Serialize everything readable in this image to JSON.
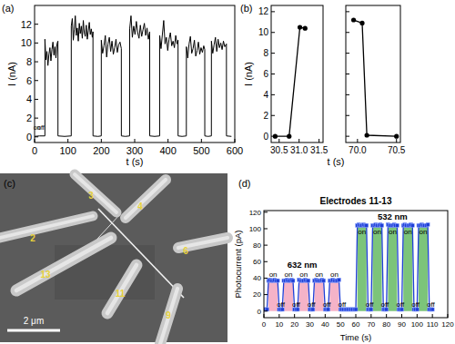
{
  "chart_data": [
    {
      "type": "line",
      "subtitle": "(a)",
      "x_label": "t (s)",
      "y_label": "I (nA)",
      "xlim": [
        0,
        600
      ],
      "xticks": [
        0,
        100,
        200,
        300,
        400,
        500,
        600
      ],
      "ylim": [
        -0.6,
        14
      ],
      "yticks": [
        0,
        2,
        4,
        6,
        8,
        10,
        12
      ],
      "series": [
        {
          "color": "#000000",
          "x": [
            0,
            15,
            30.9,
            31,
            34,
            37,
            40,
            43,
            46,
            49,
            52,
            55,
            58,
            61,
            64,
            67,
            70,
            70.1,
            90,
            109.9,
            110,
            113,
            116,
            119,
            122,
            125,
            128,
            131,
            134,
            137,
            140,
            143,
            146,
            149,
            152,
            155,
            158,
            161,
            164,
            167,
            170,
            173,
            175,
            175.1,
            190,
            199.9,
            200,
            204,
            208,
            212,
            216,
            220,
            224,
            228,
            232,
            236,
            240,
            244,
            248,
            252,
            256,
            260,
            260.1,
            272,
            284.9,
            285,
            289,
            293,
            297,
            301,
            305,
            309,
            313,
            317,
            321,
            325,
            329,
            333,
            337,
            341,
            345,
            345.1,
            360,
            374.9,
            375,
            379,
            383,
            387,
            391,
            395,
            399,
            403,
            407,
            411,
            415,
            419,
            423,
            427,
            430,
            430.1,
            442,
            454.9,
            455,
            459,
            463,
            467,
            471,
            475,
            479,
            483,
            487,
            491,
            495,
            499,
            503,
            507,
            510,
            510.1,
            520,
            529.9,
            530,
            534,
            538,
            542,
            546,
            550,
            554,
            558,
            562,
            566,
            570,
            575,
            575.1,
            590
          ],
          "values": [
            0.05,
            0.1,
            0.1,
            10.4,
            8.2,
            9.1,
            7.6,
            8.8,
            9.5,
            8.1,
            9.3,
            10.1,
            8.7,
            9.6,
            8.4,
            9.9,
            10.2,
            0.1,
            0.05,
            0.1,
            11.8,
            12.6,
            10.3,
            11.4,
            12.9,
            10.8,
            11.6,
            10.2,
            12.1,
            11.0,
            11.8,
            10.5,
            12.4,
            11.1,
            10.7,
            11.9,
            10.4,
            11.3,
            12.2,
            10.9,
            11.5,
            10.6,
            11.2,
            0.1,
            0.05,
            0.1,
            10.3,
            8.9,
            9.7,
            10.8,
            8.5,
            9.9,
            10.6,
            9.1,
            10.2,
            8.8,
            9.5,
            10.4,
            9.0,
            9.8,
            10.1,
            9.4,
            0.1,
            0.05,
            0.1,
            11.5,
            12.9,
            10.6,
            11.8,
            10.9,
            12.3,
            11.1,
            10.5,
            11.9,
            10.7,
            11.4,
            12.1,
            10.8,
            11.6,
            10.4,
            11.2,
            0.1,
            0.05,
            0.1,
            10.8,
            9.4,
            10.9,
            12.4,
            9.9,
            10.6,
            9.2,
            10.4,
            11.1,
            9.7,
            10.2,
            9.5,
            10.8,
            9.9,
            10.3,
            0.1,
            0.05,
            0.1,
            9.6,
            8.4,
            9.9,
            10.7,
            8.9,
            9.4,
            10.3,
            8.6,
            9.2,
            10.1,
            8.8,
            9.5,
            9.0,
            9.7,
            9.3,
            0.1,
            0.05,
            0.1,
            10.2,
            8.9,
            9.8,
            10.6,
            9.1,
            10.4,
            9.5,
            10.0,
            9.3,
            10.2,
            9.6,
            9.9,
            0.1,
            0.05
          ]
        }
      ],
      "annotations": [
        {
          "text": "on",
          "x": 7,
          "y": 0.9
        },
        {
          "text": "off",
          "x": 19,
          "y": 0.9
        }
      ]
    },
    {
      "type": "line",
      "subtitle": "(b)",
      "x_label": "t (s)",
      "y_label": "I (nA)",
      "xlim": [
        30.3,
        31.6
      ],
      "xticks": [
        30.5,
        {
          "value": 31,
          "label": "31.0"
        },
        31.5
      ],
      "ylim": [
        -0.6,
        12.6
      ],
      "yticks": [
        0,
        2,
        4,
        6,
        8,
        10,
        12
      ],
      "series": [
        {
          "color": "#000000",
          "marker": "circle",
          "x": [
            30.4,
            30.75,
            31.02,
            31.15
          ],
          "values": [
            0,
            0,
            10.5,
            10.4
          ]
        }
      ]
    },
    {
      "type": "line",
      "tick_labels": "x",
      "xlim": [
        69.85,
        70.55
      ],
      "xticks": [
        {
          "value": 70,
          "label": "70.0"
        },
        70.5
      ],
      "ylim": [
        -0.6,
        12.6
      ],
      "yticks": [
        0,
        2,
        4,
        6,
        8,
        10,
        12
      ],
      "series": [
        {
          "color": "#000000",
          "marker": "circle",
          "x": [
            69.95,
            70.06,
            70.12,
            70.5
          ],
          "values": [
            11.2,
            10.9,
            0.1,
            0
          ]
        }
      ]
    },
    {
      "type": "line",
      "title": "Electrodes 11-13",
      "subtitle": "(d)",
      "x_label": "Time (s)",
      "y_label": "Photocurrent (pA)",
      "xlim": [
        0,
        120
      ],
      "xticks": [
        0,
        10,
        20,
        30,
        40,
        50,
        60,
        70,
        80,
        90,
        100,
        110,
        120
      ],
      "ylim": [
        -8,
        122
      ],
      "yticks": [
        0,
        20,
        40,
        60,
        80,
        100,
        120
      ],
      "series": [
        {
          "type": "area",
          "color": "#f5b3c8",
          "x": [
            3,
            9,
            11,
            13,
            19,
            21,
            23,
            29,
            31,
            33,
            39,
            41,
            43,
            49
          ],
          "values": [
            37,
            37,
            null,
            37,
            37,
            null,
            37,
            37,
            null,
            37,
            37,
            null,
            37,
            37
          ]
        },
        {
          "type": "area",
          "color": "#7cc47a",
          "x": [
            61,
            67,
            69,
            71,
            77,
            79,
            81,
            87,
            89,
            91,
            97,
            99,
            101,
            107
          ],
          "values": [
            104,
            104,
            null,
            104,
            104,
            null,
            104,
            104,
            null,
            104,
            104,
            null,
            104,
            104
          ]
        },
        {
          "type": "line",
          "color": "#1f3fd6",
          "marker": "square",
          "x": [
            0,
            1,
            2,
            3,
            4,
            5,
            6,
            7,
            8,
            9,
            10,
            11,
            12,
            13,
            14,
            15,
            16,
            17,
            18,
            19,
            20,
            21,
            22,
            23,
            24,
            25,
            26,
            27,
            28,
            29,
            30,
            31,
            32,
            33,
            34,
            35,
            36,
            37,
            38,
            39,
            40,
            41,
            42,
            43,
            44,
            45,
            46,
            47,
            48,
            49,
            50,
            51,
            52,
            53,
            54,
            55,
            56,
            57,
            58,
            59,
            60,
            61,
            62,
            63,
            64,
            65,
            66,
            67,
            68,
            69,
            70,
            71,
            72,
            73,
            74,
            75,
            76,
            77,
            78,
            79,
            80,
            81,
            82,
            83,
            84,
            85,
            86,
            87,
            88,
            89,
            90,
            91,
            92,
            93,
            94,
            95,
            96,
            97,
            98,
            99,
            100,
            101,
            102,
            103,
            104,
            105,
            106,
            107,
            108,
            109,
            110
          ],
          "values": [
            2,
            2,
            2,
            37,
            38,
            37,
            37,
            38,
            37,
            37,
            2,
            2,
            2,
            37,
            37,
            38,
            37,
            37,
            38,
            37,
            2,
            2,
            2,
            38,
            37,
            37,
            37,
            38,
            37,
            37,
            2,
            2,
            2,
            37,
            38,
            37,
            37,
            37,
            38,
            37,
            2,
            2,
            2,
            37,
            37,
            38,
            37,
            37,
            37,
            38,
            2,
            2,
            2,
            2,
            2,
            2,
            2,
            2,
            2,
            2,
            2,
            104,
            105,
            104,
            104,
            105,
            104,
            104,
            2,
            2,
            2,
            104,
            104,
            105,
            104,
            104,
            105,
            104,
            2,
            2,
            2,
            105,
            104,
            104,
            104,
            105,
            104,
            104,
            2,
            2,
            2,
            104,
            105,
            104,
            104,
            104,
            105,
            104,
            2,
            2,
            2,
            104,
            104,
            105,
            104,
            104,
            104,
            105,
            2,
            2,
            2
          ]
        }
      ],
      "annotations": [
        {
          "text": "632 nm",
          "x": 25,
          "y": 55
        },
        {
          "text": "532 nm",
          "x": 84,
          "y": 114
        },
        {
          "text": "on",
          "x": 6,
          "y": 44
        },
        {
          "text": "on",
          "x": 16,
          "y": 44
        },
        {
          "text": "on",
          "x": 26,
          "y": 44
        },
        {
          "text": "on",
          "x": 36,
          "y": 44
        },
        {
          "text": "on",
          "x": 46,
          "y": 44
        },
        {
          "text": "on",
          "x": 64,
          "y": 96
        },
        {
          "text": "on",
          "x": 74,
          "y": 96
        },
        {
          "text": "on",
          "x": 84,
          "y": 96
        },
        {
          "text": "on",
          "x": 94,
          "y": 96
        },
        {
          "text": "on",
          "x": 104,
          "y": 96
        },
        {
          "text": "off",
          "x": 11,
          "y": 8
        },
        {
          "text": "off",
          "x": 21,
          "y": 8
        },
        {
          "text": "off",
          "x": 31,
          "y": 8
        },
        {
          "text": "off",
          "x": 41,
          "y": 8
        },
        {
          "text": "off",
          "x": 51,
          "y": 8
        },
        {
          "text": "off",
          "x": 69,
          "y": 8
        },
        {
          "text": "off",
          "x": 79,
          "y": 8
        },
        {
          "text": "off",
          "x": 89,
          "y": 8
        },
        {
          "text": "off",
          "x": 99,
          "y": 8
        },
        {
          "text": "off",
          "x": 109,
          "y": 8
        }
      ]
    }
  ],
  "image": {
    "label": "(c)",
    "electrodes": [
      "2",
      "3",
      "4",
      "13",
      "6",
      "11",
      "9"
    ],
    "scale_bar": "2 μm"
  }
}
